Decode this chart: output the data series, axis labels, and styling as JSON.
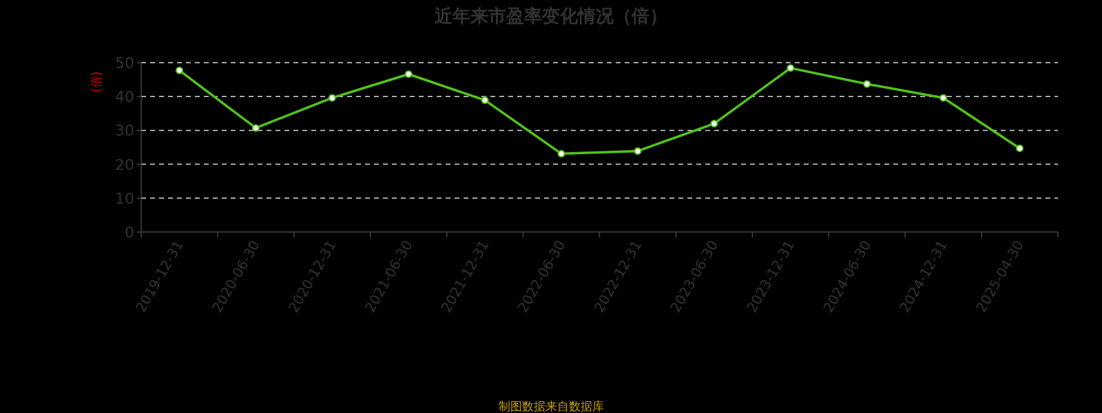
{
  "chart_data": {
    "type": "line",
    "title": "近年来市盈率变化情况（倍）",
    "ylabel": "(倍)",
    "annotations": [
      "制图数据来自数据库"
    ],
    "categories": [
      "2019-12-31",
      "2020-06-30",
      "2020-12-31",
      "2021-06-30",
      "2021-12-31",
      "2022-06-30",
      "2022-12-31",
      "2023-06-30",
      "2023-12-31",
      "2024-06-30",
      "2024-12-31",
      "2025-04-30"
    ],
    "series": [
      {
        "color": "#52c41a",
        "values": [
          47.7,
          30.7,
          39.6,
          46.6,
          38.9,
          23.1,
          23.9,
          32.0,
          48.4,
          43.7,
          39.6,
          24.7
        ]
      }
    ],
    "ylim": [
      0,
      50
    ],
    "yticks": [
      0,
      10,
      20,
      30,
      40,
      50
    ],
    "grid": "y",
    "marker": "circle",
    "line_style": "solid"
  }
}
